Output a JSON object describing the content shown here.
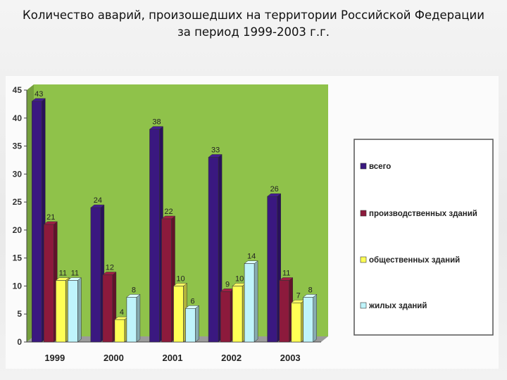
{
  "title": {
    "line1": "Количество аварий, произошедших на территории Российской Федерации",
    "line2": "за период 1999-2003 г.г."
  },
  "chart_data": {
    "type": "bar",
    "categories": [
      "1999",
      "2000",
      "2001",
      "2002",
      "2003"
    ],
    "series": [
      {
        "name": "всего",
        "values": [
          43,
          24,
          38,
          33,
          26
        ],
        "color": "#3a1880"
      },
      {
        "name": "производственных зданий",
        "values": [
          21,
          12,
          22,
          9,
          11
        ],
        "color": "#8c1a3c"
      },
      {
        "name": "общественных зданий",
        "values": [
          11,
          4,
          10,
          10,
          7
        ],
        "color": "#ffff55"
      },
      {
        "name": "жилых зданий",
        "values": [
          11,
          8,
          6,
          14,
          8
        ],
        "color": "#bff4fb"
      }
    ],
    "ylim": [
      0,
      45
    ],
    "yticks": [
      0,
      5,
      10,
      15,
      20,
      25,
      30,
      35,
      40,
      45
    ],
    "grid": false,
    "legend_position": "right",
    "plot_background": "#8fc24a",
    "xlabel": "",
    "ylabel": ""
  }
}
